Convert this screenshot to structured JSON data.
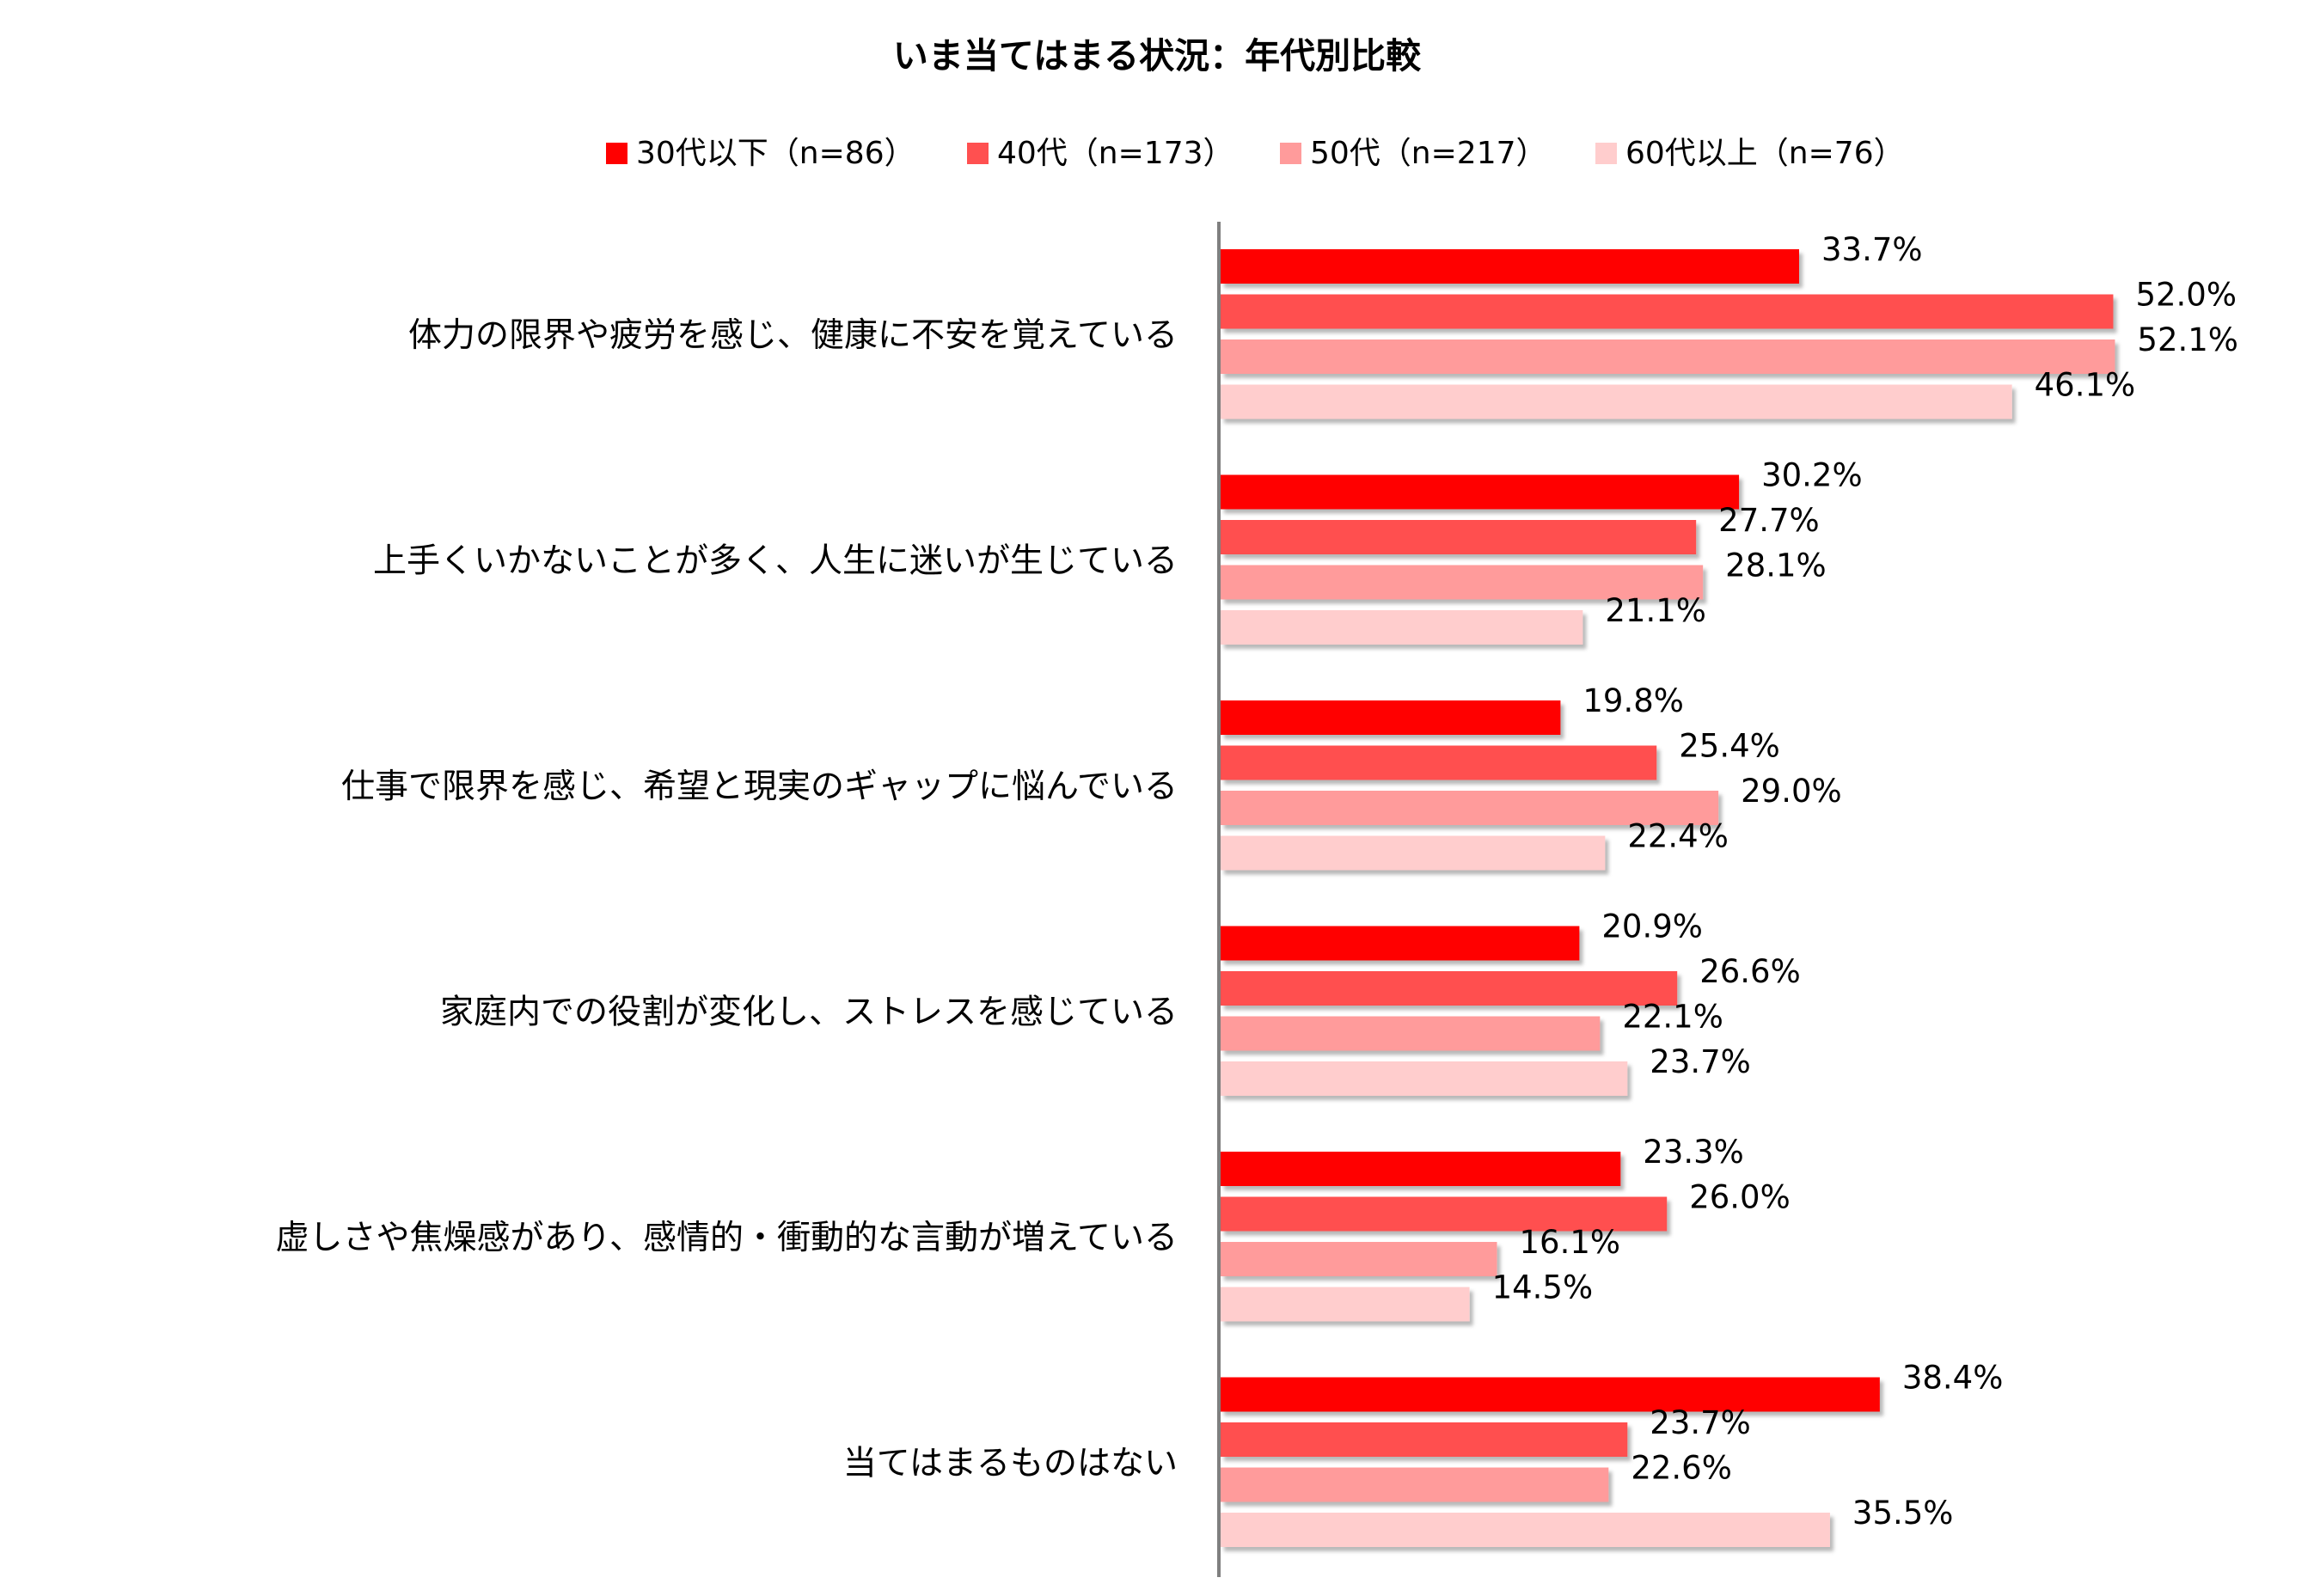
{
  "chart_data": {
    "type": "bar",
    "orientation": "horizontal",
    "title": "いま当てはまる状況：年代別比較",
    "xlabel": "",
    "ylabel": "",
    "xlim": [
      0,
      60
    ],
    "value_suffix": "%",
    "grid": false,
    "legend_position": "top",
    "categories": [
      "体力の限界や疲労を感じ、健康に不安を覚えている",
      "上手くいかないことが多く、人生に迷いが生じている",
      "仕事で限界を感じ、希望と現実のギャップに悩んでいる",
      "家庭内での役割が変化し、ストレスを感じている",
      "虚しさや焦燥感があり、感情的・衝動的な言動が増えている",
      "当てはまるものはない"
    ],
    "series": [
      {
        "name": "30代以下（n=86）",
        "color": "#ff0000",
        "values": [
          33.7,
          30.2,
          19.8,
          20.9,
          23.3,
          38.4
        ]
      },
      {
        "name": "40代（n=173）",
        "color": "#ff5050",
        "values": [
          52.0,
          27.7,
          25.4,
          26.6,
          26.0,
          23.7
        ]
      },
      {
        "name": "50代（n=217）",
        "color": "#ff9b9b",
        "values": [
          52.1,
          28.1,
          29.0,
          22.1,
          16.1,
          22.6
        ]
      },
      {
        "name": "60代以上（n=76）",
        "color": "#ffcdcd",
        "values": [
          46.1,
          21.1,
          22.4,
          23.7,
          14.5,
          35.5
        ]
      }
    ]
  }
}
